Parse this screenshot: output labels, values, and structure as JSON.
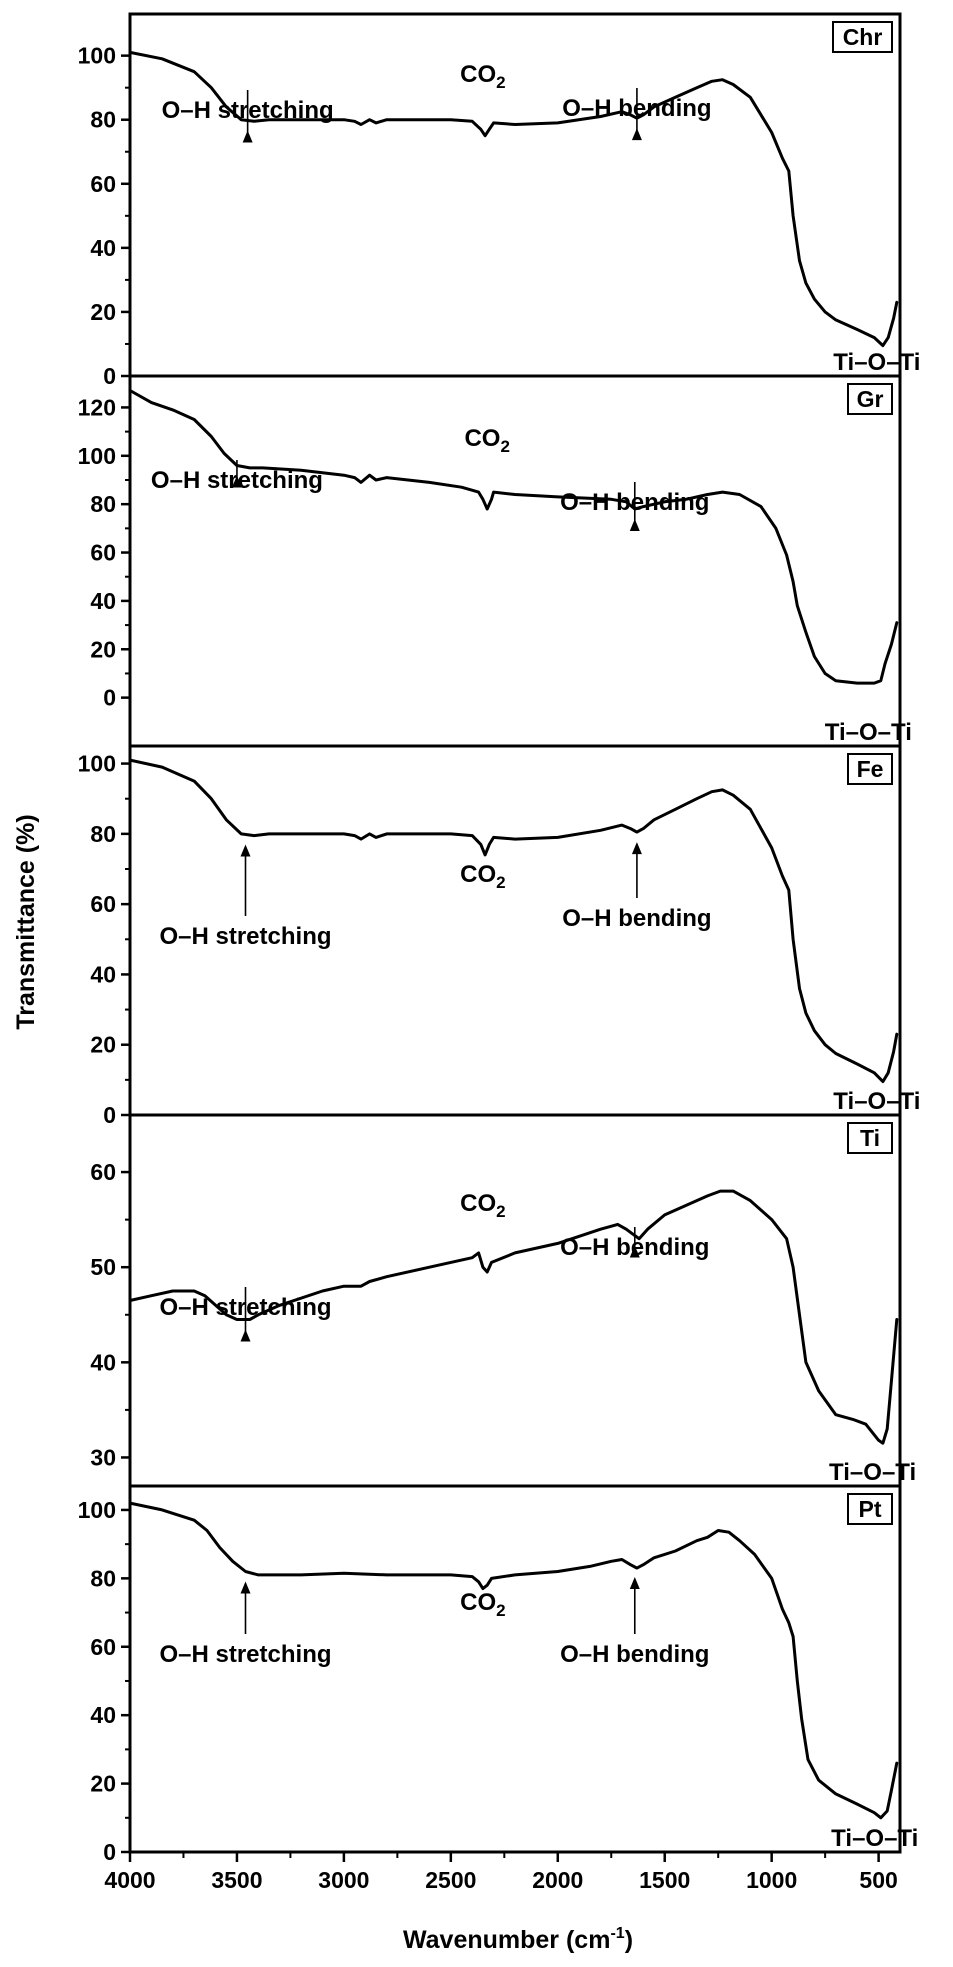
{
  "chart_data": {
    "type": "line",
    "xlabel": "Wavenumber (cm",
    "xlabel_superscript": "-1",
    "xlabel_close": ")",
    "ylabel": "Transmittance (%)",
    "xlim": [
      4000,
      400
    ],
    "x_ticks": [
      "4000",
      "3500",
      "3000",
      "2500",
      "2000",
      "1500",
      "1000",
      "500"
    ],
    "panels": [
      {
        "name": "Chr",
        "ylim": [
          0,
          113
        ],
        "y_ticks": [
          "0",
          "20",
          "40",
          "60",
          "80",
          "100"
        ],
        "points": [
          [
            4000,
            101
          ],
          [
            3850,
            99
          ],
          [
            3700,
            95
          ],
          [
            3620,
            90
          ],
          [
            3550,
            84
          ],
          [
            3480,
            80
          ],
          [
            3420,
            79.5
          ],
          [
            3350,
            80
          ],
          [
            3000,
            80
          ],
          [
            2950,
            79.5
          ],
          [
            2920,
            78.5
          ],
          [
            2880,
            80
          ],
          [
            2850,
            79
          ],
          [
            2800,
            80
          ],
          [
            2500,
            80
          ],
          [
            2400,
            79.5
          ],
          [
            2360,
            77
          ],
          [
            2340,
            75
          ],
          [
            2320,
            77
          ],
          [
            2300,
            79
          ],
          [
            2200,
            78.5
          ],
          [
            2000,
            79
          ],
          [
            1800,
            81
          ],
          [
            1700,
            82.5
          ],
          [
            1660,
            81.5
          ],
          [
            1630,
            80.5
          ],
          [
            1600,
            81.5
          ],
          [
            1550,
            84
          ],
          [
            1450,
            87
          ],
          [
            1350,
            90
          ],
          [
            1280,
            92
          ],
          [
            1230,
            92.5
          ],
          [
            1180,
            91
          ],
          [
            1100,
            87
          ],
          [
            1000,
            76
          ],
          [
            950,
            68
          ],
          [
            920,
            64
          ],
          [
            900,
            50
          ],
          [
            870,
            36
          ],
          [
            840,
            29
          ],
          [
            800,
            24
          ],
          [
            750,
            20
          ],
          [
            700,
            17.5
          ],
          [
            600,
            14.5
          ],
          [
            520,
            12
          ],
          [
            480,
            9.5
          ],
          [
            455,
            12
          ],
          [
            430,
            18
          ],
          [
            415,
            23
          ]
        ],
        "annotations": [
          {
            "text": "O–H stretching",
            "x": 3450
          },
          {
            "text": "CO",
            "subscript": "2",
            "x": 2350
          },
          {
            "text": "O–H bending",
            "x": 1630
          },
          {
            "text": "Ti–O–Ti",
            "x": 480
          }
        ]
      },
      {
        "name": "Gr",
        "ylim": [
          -20,
          133
        ],
        "y_ticks": [
          "0",
          "20",
          "40",
          "60",
          "80",
          "100",
          "120"
        ],
        "points": [
          [
            4000,
            127
          ],
          [
            3900,
            122
          ],
          [
            3800,
            119
          ],
          [
            3700,
            115
          ],
          [
            3620,
            108
          ],
          [
            3560,
            101
          ],
          [
            3500,
            96
          ],
          [
            3440,
            95
          ],
          [
            3380,
            95
          ],
          [
            3200,
            94
          ],
          [
            3000,
            92
          ],
          [
            2950,
            91
          ],
          [
            2920,
            89
          ],
          [
            2880,
            92
          ],
          [
            2850,
            90
          ],
          [
            2800,
            91
          ],
          [
            2600,
            89
          ],
          [
            2450,
            87
          ],
          [
            2370,
            85
          ],
          [
            2350,
            82
          ],
          [
            2330,
            78
          ],
          [
            2310,
            82
          ],
          [
            2300,
            85
          ],
          [
            2200,
            84
          ],
          [
            2000,
            83
          ],
          [
            1750,
            82
          ],
          [
            1680,
            81
          ],
          [
            1640,
            78
          ],
          [
            1600,
            79
          ],
          [
            1500,
            81
          ],
          [
            1400,
            82
          ],
          [
            1300,
            84
          ],
          [
            1230,
            85
          ],
          [
            1150,
            84
          ],
          [
            1050,
            79
          ],
          [
            980,
            70
          ],
          [
            930,
            59
          ],
          [
            900,
            48
          ],
          [
            880,
            38
          ],
          [
            840,
            27
          ],
          [
            800,
            17
          ],
          [
            750,
            10
          ],
          [
            700,
            7
          ],
          [
            600,
            6
          ],
          [
            520,
            6
          ],
          [
            490,
            7
          ],
          [
            470,
            14
          ],
          [
            440,
            22
          ],
          [
            415,
            31
          ]
        ],
        "annotations": [
          {
            "text": "O–H stretching",
            "x": 3500
          },
          {
            "text": "CO",
            "subscript": "2",
            "x": 2330
          },
          {
            "text": "O–H bending",
            "x": 1640
          },
          {
            "text": "Ti–O–Ti",
            "x": 520
          }
        ]
      },
      {
        "name": "Fe",
        "ylim": [
          0,
          105
        ],
        "y_ticks": [
          "0",
          "20",
          "40",
          "60",
          "80",
          "100"
        ],
        "points": [
          [
            4000,
            101
          ],
          [
            3850,
            99
          ],
          [
            3700,
            95
          ],
          [
            3620,
            90
          ],
          [
            3550,
            84
          ],
          [
            3480,
            80
          ],
          [
            3420,
            79.5
          ],
          [
            3350,
            80
          ],
          [
            3000,
            80
          ],
          [
            2950,
            79.5
          ],
          [
            2920,
            78.5
          ],
          [
            2880,
            80
          ],
          [
            2850,
            79
          ],
          [
            2800,
            80
          ],
          [
            2500,
            80
          ],
          [
            2400,
            79.5
          ],
          [
            2360,
            77
          ],
          [
            2340,
            74
          ],
          [
            2320,
            77
          ],
          [
            2300,
            79
          ],
          [
            2200,
            78.5
          ],
          [
            2000,
            79
          ],
          [
            1800,
            81
          ],
          [
            1700,
            82.5
          ],
          [
            1660,
            81.5
          ],
          [
            1630,
            80.5
          ],
          [
            1600,
            81.5
          ],
          [
            1550,
            84
          ],
          [
            1450,
            87
          ],
          [
            1350,
            90
          ],
          [
            1280,
            92
          ],
          [
            1230,
            92.5
          ],
          [
            1180,
            91
          ],
          [
            1100,
            87
          ],
          [
            1000,
            76
          ],
          [
            950,
            68
          ],
          [
            920,
            64
          ],
          [
            900,
            50
          ],
          [
            870,
            36
          ],
          [
            840,
            29
          ],
          [
            800,
            24
          ],
          [
            750,
            20
          ],
          [
            700,
            17.5
          ],
          [
            600,
            14.5
          ],
          [
            520,
            12
          ],
          [
            480,
            9.5
          ],
          [
            455,
            12
          ],
          [
            430,
            18
          ],
          [
            415,
            23
          ]
        ],
        "annotations": [
          {
            "text": "O–H stretching",
            "x": 3460
          },
          {
            "text": "CO",
            "subscript": "2",
            "x": 2350
          },
          {
            "text": "O–H bending",
            "x": 1630
          },
          {
            "text": "Ti–O–Ti",
            "x": 480
          }
        ]
      },
      {
        "name": "Ti",
        "ylim": [
          27,
          66
        ],
        "y_ticks": [
          "30",
          "40",
          "50",
          "60"
        ],
        "points": [
          [
            4000,
            46.5
          ],
          [
            3900,
            47
          ],
          [
            3800,
            47.5
          ],
          [
            3700,
            47.5
          ],
          [
            3650,
            47
          ],
          [
            3600,
            46
          ],
          [
            3550,
            45
          ],
          [
            3500,
            44.5
          ],
          [
            3440,
            44.5
          ],
          [
            3400,
            45
          ],
          [
            3300,
            46
          ],
          [
            3100,
            47.5
          ],
          [
            3000,
            48
          ],
          [
            2950,
            48
          ],
          [
            2920,
            48
          ],
          [
            2880,
            48.5
          ],
          [
            2800,
            49
          ],
          [
            2600,
            50
          ],
          [
            2400,
            51
          ],
          [
            2370,
            51.5
          ],
          [
            2350,
            50
          ],
          [
            2330,
            49.5
          ],
          [
            2310,
            50.5
          ],
          [
            2200,
            51.5
          ],
          [
            2000,
            52.5
          ],
          [
            1800,
            54
          ],
          [
            1720,
            54.5
          ],
          [
            1680,
            54
          ],
          [
            1650,
            53.5
          ],
          [
            1620,
            53
          ],
          [
            1580,
            54
          ],
          [
            1500,
            55.5
          ],
          [
            1400,
            56.5
          ],
          [
            1300,
            57.5
          ],
          [
            1240,
            58
          ],
          [
            1180,
            58
          ],
          [
            1100,
            57
          ],
          [
            1000,
            55
          ],
          [
            930,
            53
          ],
          [
            900,
            50
          ],
          [
            870,
            45
          ],
          [
            840,
            40
          ],
          [
            780,
            37
          ],
          [
            700,
            34.5
          ],
          [
            620,
            34
          ],
          [
            560,
            33.5
          ],
          [
            500,
            31.8
          ],
          [
            480,
            31.5
          ],
          [
            460,
            33
          ],
          [
            440,
            38
          ],
          [
            415,
            44.5
          ]
        ],
        "annotations": [
          {
            "text": "O–H stretching",
            "x": 3460
          },
          {
            "text": "CO",
            "subscript": "2",
            "x": 2350
          },
          {
            "text": "O–H bending",
            "x": 1640
          },
          {
            "text": "Ti–O–Ti",
            "x": 500
          }
        ]
      },
      {
        "name": "Pt",
        "ylim": [
          0,
          107
        ],
        "y_ticks": [
          "0",
          "20",
          "40",
          "60",
          "80",
          "100"
        ],
        "points": [
          [
            4000,
            102
          ],
          [
            3850,
            100
          ],
          [
            3700,
            97
          ],
          [
            3640,
            94
          ],
          [
            3580,
            89
          ],
          [
            3520,
            85
          ],
          [
            3460,
            82
          ],
          [
            3400,
            81
          ],
          [
            3200,
            81
          ],
          [
            3000,
            81.5
          ],
          [
            2800,
            81
          ],
          [
            2500,
            81
          ],
          [
            2400,
            80.5
          ],
          [
            2370,
            79
          ],
          [
            2350,
            77
          ],
          [
            2330,
            78
          ],
          [
            2310,
            80
          ],
          [
            2200,
            81
          ],
          [
            2000,
            82
          ],
          [
            1850,
            83.5
          ],
          [
            1750,
            85
          ],
          [
            1700,
            85.5
          ],
          [
            1660,
            84
          ],
          [
            1630,
            83
          ],
          [
            1600,
            84
          ],
          [
            1550,
            86
          ],
          [
            1450,
            88
          ],
          [
            1350,
            91
          ],
          [
            1300,
            92
          ],
          [
            1250,
            94
          ],
          [
            1200,
            93.5
          ],
          [
            1150,
            91
          ],
          [
            1080,
            87
          ],
          [
            1000,
            80
          ],
          [
            950,
            71
          ],
          [
            920,
            67
          ],
          [
            900,
            63
          ],
          [
            880,
            50
          ],
          [
            860,
            39
          ],
          [
            830,
            27
          ],
          [
            780,
            21
          ],
          [
            700,
            17
          ],
          [
            600,
            14
          ],
          [
            520,
            11.5
          ],
          [
            490,
            10
          ],
          [
            460,
            12
          ],
          [
            440,
            18
          ],
          [
            415,
            26
          ]
        ],
        "annotations": [
          {
            "text": "O–H stretching",
            "x": 3460
          },
          {
            "text": "CO",
            "subscript": "2",
            "x": 2350
          },
          {
            "text": "O–H bending",
            "x": 1640
          },
          {
            "text": "Ti–O–Ti",
            "x": 490
          }
        ]
      }
    ]
  }
}
